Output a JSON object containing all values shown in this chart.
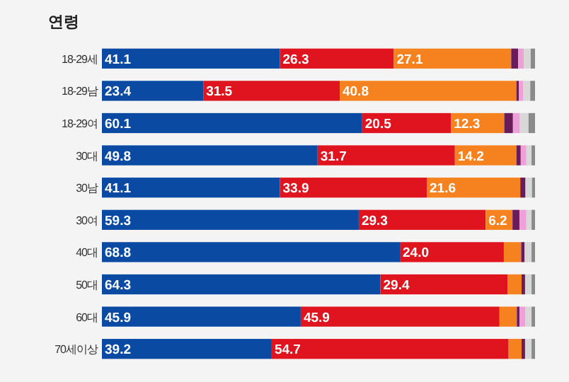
{
  "chart_data": {
    "type": "bar",
    "orientation": "horizontal",
    "stacked": true,
    "title": "연령",
    "categories": [
      "18-29세",
      "18-29남",
      "18-29여",
      "30대",
      "30남",
      "30여",
      "40대",
      "50대",
      "60대",
      "70세이상"
    ],
    "xlim": [
      0,
      100
    ],
    "tick_labels": "y",
    "series": [
      {
        "color": "#0b4aa2",
        "values": [
          41.1,
          23.4,
          60.1,
          49.8,
          41.1,
          59.3,
          68.8,
          64.3,
          45.9,
          39.2
        ],
        "value_labels": [
          "41.1",
          "23.4",
          "60.1",
          "49.8",
          "41.1",
          "59.3",
          "68.8",
          "64.3",
          "45.9",
          "39.2"
        ]
      },
      {
        "color": "#e0141f",
        "values": [
          26.3,
          31.5,
          20.5,
          31.7,
          33.9,
          29.3,
          24.0,
          29.4,
          45.9,
          54.7
        ],
        "value_labels": [
          "26.3",
          "31.5",
          "20.5",
          "31.7",
          "33.9",
          "29.3",
          "24.0",
          "29.4",
          "45.9",
          "54.7"
        ]
      },
      {
        "color": "#f5821f",
        "values": [
          27.1,
          40.8,
          12.3,
          14.2,
          21.6,
          6.2,
          4.0,
          3.2,
          4.0,
          3.0
        ],
        "value_labels": [
          "27.1",
          "40.8",
          "12.3",
          "14.2",
          "21.6",
          "6.2",
          null,
          null,
          null,
          null
        ]
      },
      {
        "color": "#6a1b5a",
        "values": [
          1.6,
          0.6,
          2.0,
          1.0,
          1.2,
          1.6,
          0.8,
          0.8,
          0.6,
          0.8
        ]
      },
      {
        "color": "#f0a0d8",
        "values": [
          1.3,
          1.0,
          1.6,
          1.3,
          null,
          1.6,
          null,
          null,
          1.4,
          null
        ]
      },
      {
        "color": "#d8d8d8",
        "values": [
          1.6,
          1.6,
          2.0,
          1.2,
          1.5,
          1.2,
          1.6,
          1.5,
          1.4,
          1.5
        ]
      },
      {
        "color": "#8a8a8a",
        "values": [
          1.0,
          1.1,
          1.5,
          0.8,
          0.7,
          0.8,
          0.8,
          0.8,
          0.8,
          0.8
        ]
      }
    ]
  }
}
